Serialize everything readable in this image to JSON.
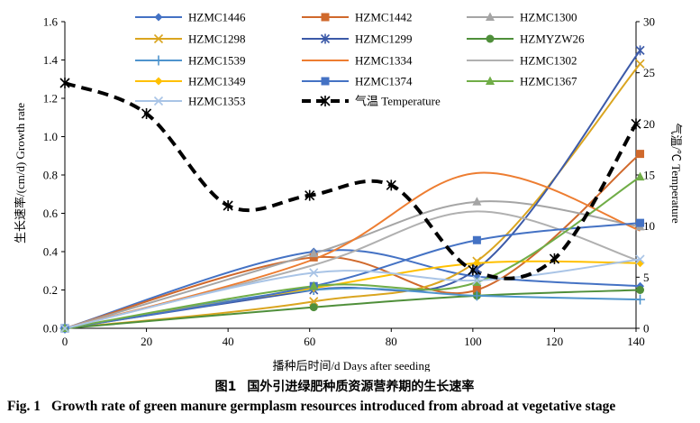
{
  "chart_data": {
    "type": "line",
    "xlabel": "播种后时间/d Days after seeding",
    "ylabel": "生长速率/(cm/d) Growth rate",
    "y2label": "气温/℃ Temperature",
    "xlim": [
      0,
      140
    ],
    "ylim": [
      0,
      1.6
    ],
    "y2lim": [
      0,
      30
    ],
    "x_ticks": [
      "0",
      "20",
      "40",
      "60",
      "80",
      "100",
      "120",
      "140"
    ],
    "y_ticks": [
      "0.0",
      "0.2",
      "0.4",
      "0.6",
      "0.8",
      "1.0",
      "1.2",
      "1.4",
      "1.6"
    ],
    "y2_ticks": [
      "0",
      "5",
      "10",
      "15",
      "20",
      "25",
      "30"
    ],
    "grid": false,
    "legend_position": "top",
    "series": [
      {
        "name": "HZMC1446",
        "color": "#4472c4",
        "marker": "diamond",
        "x": [
          0,
          61,
          101,
          141
        ],
        "y": [
          0.0,
          0.4,
          0.27,
          0.22
        ]
      },
      {
        "name": "HZMC1442",
        "color": "#d0692c",
        "marker": "square",
        "x": [
          0,
          61,
          101,
          141
        ],
        "y": [
          0.0,
          0.37,
          0.2,
          0.91
        ]
      },
      {
        "name": "HZMC1300",
        "color": "#a5a5a5",
        "marker": "triangle",
        "x": [
          0,
          61,
          101,
          141
        ],
        "y": [
          0.0,
          0.39,
          0.66,
          0.53
        ]
      },
      {
        "name": "HZMC1298",
        "color": "#daa520",
        "marker": "x",
        "x": [
          0,
          61,
          101,
          141
        ],
        "y": [
          0.0,
          0.14,
          0.35,
          1.38
        ]
      },
      {
        "name": "HZMC1299",
        "color": "#3c5aa8",
        "marker": "star",
        "x": [
          0,
          61,
          101,
          141
        ],
        "y": [
          0.0,
          0.2,
          0.31,
          1.45
        ]
      },
      {
        "name": "HZMYZW26",
        "color": "#4f8f3a",
        "marker": "circle",
        "x": [
          0,
          61,
          101,
          141
        ],
        "y": [
          0.0,
          0.11,
          0.17,
          0.2
        ]
      },
      {
        "name": "HZMC1539",
        "color": "#4f94cd",
        "marker": "plus",
        "x": [
          0,
          61,
          101,
          141
        ],
        "y": [
          0.0,
          0.2,
          0.17,
          0.15
        ]
      },
      {
        "name": "HZMC1334",
        "color": "#ed7d31",
        "marker": "none",
        "x": [
          0,
          61,
          101,
          141
        ],
        "y": [
          0.0,
          0.36,
          0.81,
          0.51
        ]
      },
      {
        "name": "HZMC1302",
        "color": "#b0b0b0",
        "marker": "none",
        "x": [
          0,
          61,
          101,
          141
        ],
        "y": [
          0.0,
          0.33,
          0.61,
          0.35
        ]
      },
      {
        "name": "HZMC1349",
        "color": "#ffc000",
        "marker": "diamond",
        "x": [
          0,
          61,
          101,
          141
        ],
        "y": [
          0.0,
          0.21,
          0.34,
          0.34
        ]
      },
      {
        "name": "HZMC1374",
        "color": "#4472c4",
        "marker": "square",
        "x": [
          0,
          61,
          101,
          141
        ],
        "y": [
          0.0,
          0.22,
          0.46,
          0.55
        ]
      },
      {
        "name": "HZMC1367",
        "color": "#70ad47",
        "marker": "triangle",
        "x": [
          0,
          61,
          101,
          141
        ],
        "y": [
          0.0,
          0.22,
          0.24,
          0.79
        ]
      },
      {
        "name": "HZMC1353",
        "color": "#a9c4e6",
        "marker": "x",
        "x": [
          0,
          61,
          101,
          141
        ],
        "y": [
          0.0,
          0.29,
          0.25,
          0.36
        ]
      },
      {
        "name": "气温 Temperature",
        "color": "#000000",
        "marker": "star",
        "dashed": true,
        "axis": "right",
        "x": [
          0,
          20,
          40,
          60,
          80,
          100,
          120,
          140
        ],
        "y": [
          24,
          21,
          12,
          13,
          14,
          5.7,
          6.8,
          20
        ]
      }
    ]
  },
  "caption_cn": {
    "number": "图1",
    "text": "国外引进绿肥种质资源营养期的生长速率"
  },
  "caption_en": {
    "number": "Fig. 1",
    "text": "Growth rate of green manure germplasm resources introduced from abroad at vegetative stage"
  }
}
